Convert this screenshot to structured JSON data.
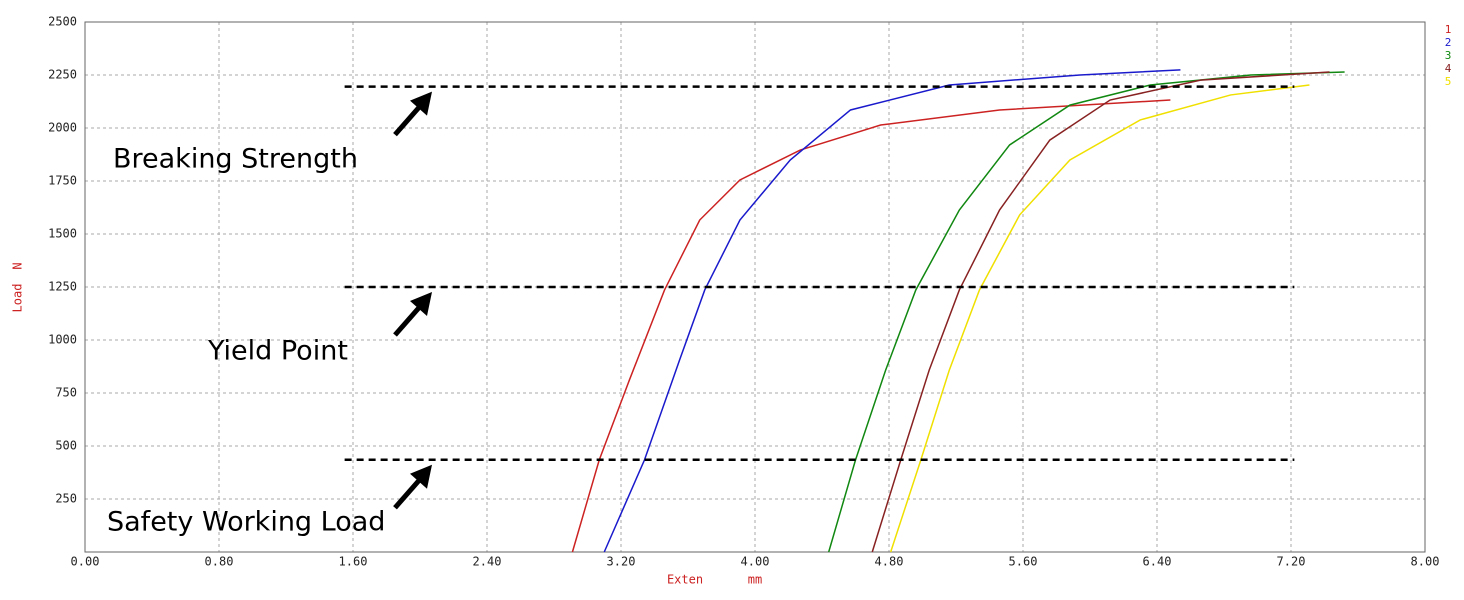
{
  "chart_data": {
    "type": "line",
    "x_label": "Exten",
    "x_unit": "mm",
    "y_label": "Load",
    "y_unit": "N",
    "xlim": [
      0,
      8
    ],
    "ylim": [
      0,
      2500
    ],
    "xticks": [
      {
        "value": 0,
        "label": "0.00"
      },
      {
        "value": 0.8,
        "label": "0.80"
      },
      {
        "value": 1.6,
        "label": "1.60"
      },
      {
        "value": 2.4,
        "label": "2.40"
      },
      {
        "value": 3.2,
        "label": "3.20"
      },
      {
        "value": 4.0,
        "label": "4.00"
      },
      {
        "value": 4.8,
        "label": "4.80"
      },
      {
        "value": 5.6,
        "label": "5.60"
      },
      {
        "value": 6.4,
        "label": "6.40"
      },
      {
        "value": 7.2,
        "label": "7.20"
      },
      {
        "value": 8.0,
        "label": "8.00"
      }
    ],
    "yticks": [
      250,
      500,
      750,
      1000,
      1250,
      1500,
      1750,
      2000,
      2250,
      2500
    ],
    "grid": true,
    "series": [
      {
        "name": "1",
        "color": "#cc2222",
        "x": [
          2.91,
          3.07,
          3.25,
          3.46,
          3.67,
          3.91,
          4.27,
          4.75,
          5.46,
          6.48
        ],
        "values": [
          0,
          434,
          811,
          1236,
          1566,
          1755,
          1896,
          2014,
          2085,
          2132
        ]
      },
      {
        "name": "2",
        "color": "#1a1acc",
        "x": [
          3.1,
          3.34,
          3.55,
          3.7,
          3.91,
          4.21,
          4.57,
          5.16,
          5.94,
          6.54
        ],
        "values": [
          0,
          434,
          906,
          1236,
          1566,
          1849,
          2085,
          2203,
          2250,
          2274
        ]
      },
      {
        "name": "3",
        "color": "#118811",
        "x": [
          4.44,
          4.6,
          4.78,
          4.96,
          5.22,
          5.52,
          5.88,
          6.36,
          6.96,
          7.52
        ],
        "values": [
          0,
          434,
          858,
          1236,
          1613,
          1920,
          2108,
          2203,
          2250,
          2264
        ]
      },
      {
        "name": "4",
        "color": "#882222",
        "x": [
          4.7,
          4.87,
          5.04,
          5.22,
          5.46,
          5.76,
          6.12,
          6.66,
          7.43
        ],
        "values": [
          0,
          434,
          858,
          1236,
          1613,
          1943,
          2132,
          2226,
          2264
        ]
      },
      {
        "name": "5",
        "color": "#f0e000",
        "x": [
          4.81,
          4.99,
          5.16,
          5.34,
          5.58,
          5.88,
          6.3,
          6.84,
          7.31
        ],
        "values": [
          0,
          434,
          858,
          1236,
          1590,
          1849,
          2038,
          2156,
          2203
        ]
      }
    ],
    "annotations": [
      {
        "text": "Breaking Strength",
        "y": 2195,
        "x": [
          1.55,
          7.22
        ]
      },
      {
        "text": "Yield Point",
        "y": 1250,
        "x": [
          1.55,
          7.22
        ]
      },
      {
        "text": "Safety Working Load",
        "y": 435,
        "x": [
          1.55,
          7.22
        ]
      }
    ]
  }
}
